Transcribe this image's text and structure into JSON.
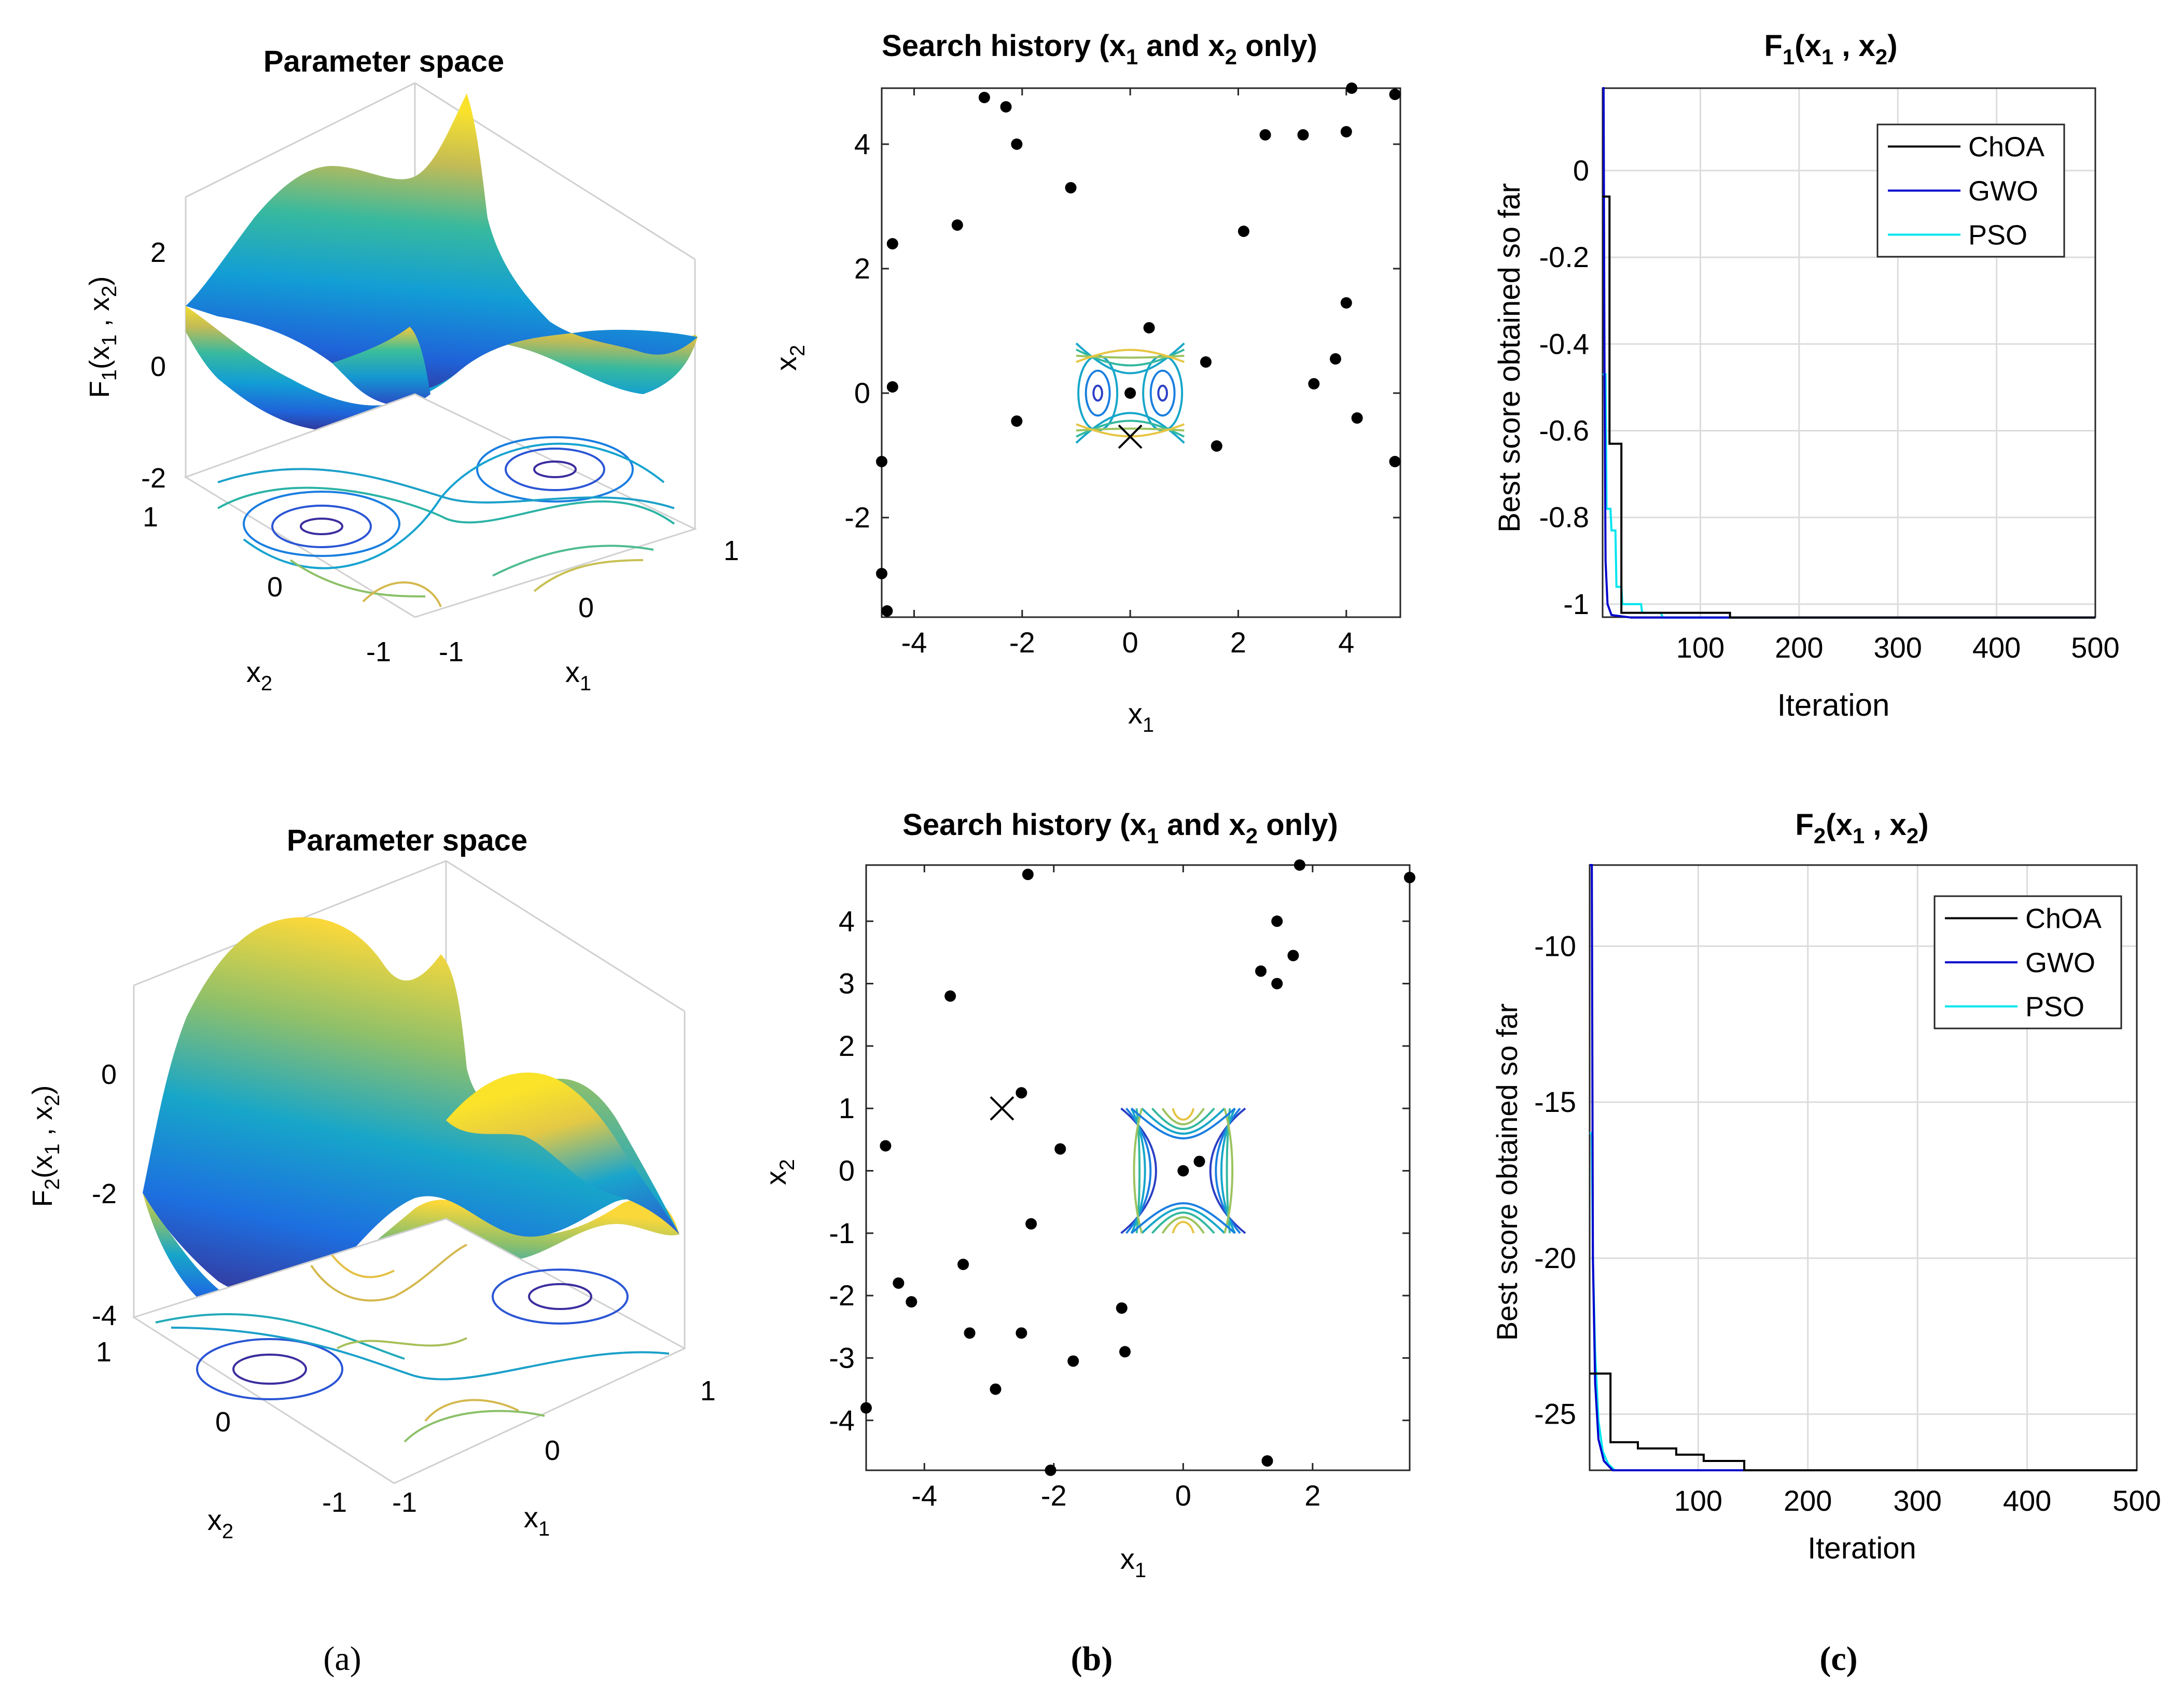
{
  "figure": {
    "panel_labels": [
      "(a)",
      "(b)",
      "(c)"
    ]
  },
  "row1": {
    "surface": {
      "title": "Parameter space",
      "zlabel": {
        "base": "F",
        "sub": "1",
        "rest": "(x",
        "sub2": "1",
        "mid": " , x",
        "sub3": "2",
        "end": ")"
      },
      "xlabel": {
        "base": "x",
        "sub": "1"
      },
      "ylabel": {
        "base": "x",
        "sub": "2"
      },
      "zticks": [
        "2",
        "0",
        "-2"
      ],
      "xticks": [
        "-1",
        "0",
        "1"
      ],
      "yticks": [
        "1",
        "0",
        "-1"
      ]
    },
    "history": {
      "title_pre": "Search history (x",
      "title_sub1": "1",
      "title_mid": " and x",
      "title_sub2": "2",
      "title_post": " only)",
      "xlabel": {
        "base": "x",
        "sub": "1"
      },
      "ylabel": {
        "base": "x",
        "sub": "2"
      }
    },
    "convergence": {
      "title": {
        "base": "F",
        "sub": "1",
        "rest": "(x",
        "sub2": "1",
        "mid": " , x",
        "sub3": "2",
        "end": ")"
      },
      "xlabel": "Iteration",
      "ylabel": "Best score obtained so far"
    }
  },
  "row2": {
    "surface": {
      "title": "Parameter space",
      "zlabel": {
        "base": "F",
        "sub": "2",
        "rest": "(x",
        "sub2": "1",
        "mid": " , x",
        "sub3": "2",
        "end": ")"
      },
      "xlabel": {
        "base": "x",
        "sub": "1"
      },
      "ylabel": {
        "base": "x",
        "sub": "2"
      },
      "zticks": [
        "0",
        "-2",
        "-4"
      ],
      "xticks": [
        "-1",
        "0",
        "1"
      ],
      "yticks": [
        "1",
        "0",
        "-1"
      ]
    },
    "history": {
      "title_pre": "Search history (x",
      "title_sub1": "1",
      "title_mid": " and x",
      "title_sub2": "2",
      "title_post": " only)",
      "xlabel": {
        "base": "x",
        "sub": "1"
      },
      "ylabel": {
        "base": "x",
        "sub": "2"
      }
    },
    "convergence": {
      "title": {
        "base": "F",
        "sub": "2",
        "rest": "(x",
        "sub2": "1",
        "mid": " , x",
        "sub3": "2",
        "end": ")"
      },
      "xlabel": "Iteration",
      "ylabel": "Best score obtained so far"
    }
  },
  "colors": {
    "ChOA": "#000000",
    "GWO": "#0000cc",
    "PSO": "#00e5ee",
    "grid": "#dcdcdc"
  },
  "chart_data": [
    {
      "type": "scatter",
      "id": "history1",
      "xlim": [
        -4.6,
        5
      ],
      "ylim": [
        -3.6,
        4.9
      ],
      "xticks": [
        -4,
        -2,
        0,
        2,
        4
      ],
      "yticks": [
        -2,
        0,
        2,
        4
      ],
      "points": [
        [
          -2.7,
          4.75
        ],
        [
          -2.3,
          4.6
        ],
        [
          -2.1,
          4.0
        ],
        [
          -1.1,
          3.3
        ],
        [
          -3.2,
          2.7
        ],
        [
          -4.4,
          2.4
        ],
        [
          -4.4,
          0.1
        ],
        [
          -4.6,
          -1.1
        ],
        [
          -4.6,
          -2.9
        ],
        [
          -4.5,
          -3.5
        ],
        [
          -2.1,
          -0.45
        ],
        [
          0.35,
          1.05
        ],
        [
          0.0,
          0.0
        ],
        [
          1.4,
          0.5
        ],
        [
          1.6,
          -0.85
        ],
        [
          2.1,
          2.6
        ],
        [
          2.5,
          4.15
        ],
        [
          3.2,
          4.15
        ],
        [
          4.1,
          4.9
        ],
        [
          4.9,
          4.8
        ],
        [
          4.0,
          4.2
        ],
        [
          4.0,
          1.45
        ],
        [
          3.8,
          0.55
        ],
        [
          3.4,
          0.15
        ],
        [
          4.2,
          -0.4
        ],
        [
          4.9,
          -1.1
        ]
      ],
      "best": [
        0,
        -0.7
      ],
      "inset": {
        "x": [
          -1,
          1
        ],
        "y": [
          -1,
          1
        ]
      }
    },
    {
      "type": "scatter",
      "id": "history2",
      "xlim": [
        -4.9,
        3.5
      ],
      "ylim": [
        -4.8,
        4.9
      ],
      "xticks": [
        -4,
        -2,
        0,
        2
      ],
      "yticks": [
        -4,
        -3,
        -2,
        -1,
        0,
        1,
        2,
        3,
        4
      ],
      "points": [
        [
          -2.4,
          4.75
        ],
        [
          -3.6,
          2.8
        ],
        [
          -2.5,
          1.25
        ],
        [
          -1.9,
          0.35
        ],
        [
          -4.6,
          0.4
        ],
        [
          -2.35,
          -0.85
        ],
        [
          -3.4,
          -1.5
        ],
        [
          -4.4,
          -1.8
        ],
        [
          -4.2,
          -2.1
        ],
        [
          -3.3,
          -2.6
        ],
        [
          -2.5,
          -2.6
        ],
        [
          -2.9,
          -3.5
        ],
        [
          -0.95,
          -2.2
        ],
        [
          -0.9,
          -2.9
        ],
        [
          -1.7,
          -3.05
        ],
        [
          -2.05,
          -4.8
        ],
        [
          -4.9,
          -3.8
        ],
        [
          0.25,
          0.15
        ],
        [
          0.0,
          0.0
        ],
        [
          1.3,
          -4.65
        ],
        [
          1.2,
          3.2
        ],
        [
          1.45,
          4.0
        ],
        [
          1.7,
          3.45
        ],
        [
          1.45,
          3.0
        ],
        [
          1.8,
          4.9
        ],
        [
          3.5,
          4.7
        ]
      ],
      "best": [
        -2.8,
        1.0
      ],
      "inset": {
        "x": [
          -1,
          1
        ],
        "y": [
          -1,
          1
        ]
      }
    },
    {
      "type": "line",
      "id": "convergence1",
      "xlim": [
        1,
        500
      ],
      "ylim": [
        -1.03,
        0.19
      ],
      "xticks": [
        100,
        200,
        300,
        400,
        500
      ],
      "yticks": [
        0,
        -0.2,
        -0.4,
        -0.6,
        -0.8,
        -1
      ],
      "legend": "top-right",
      "series": [
        {
          "name": "ChOA",
          "points": [
            [
              1,
              -0.06
            ],
            [
              8,
              -0.06
            ],
            [
              8,
              -0.63
            ],
            [
              20,
              -0.63
            ],
            [
              20,
              -1.02
            ],
            [
              130,
              -1.02
            ],
            [
              130,
              -1.031
            ],
            [
              500,
              -1.031
            ]
          ]
        },
        {
          "name": "GWO",
          "points": [
            [
              1,
              0.19
            ],
            [
              2,
              0.19
            ],
            [
              3,
              -0.5
            ],
            [
              4,
              -0.9
            ],
            [
              6,
              -1.0
            ],
            [
              10,
              -1.025
            ],
            [
              30,
              -1.031
            ],
            [
              500,
              -1.031
            ]
          ]
        },
        {
          "name": "PSO",
          "points": [
            [
              1,
              -0.47
            ],
            [
              4,
              -0.47
            ],
            [
              5,
              -0.78
            ],
            [
              9,
              -0.78
            ],
            [
              10,
              -0.83
            ],
            [
              14,
              -0.83
            ],
            [
              15,
              -0.96
            ],
            [
              20,
              -0.96
            ],
            [
              21,
              -1.0
            ],
            [
              40,
              -1.0
            ],
            [
              41,
              -1.02
            ],
            [
              60,
              -1.02
            ],
            [
              62,
              -1.031
            ],
            [
              500,
              -1.031
            ]
          ]
        }
      ]
    },
    {
      "type": "line",
      "id": "convergence2",
      "xlim": [
        1,
        500
      ],
      "ylim": [
        -26.8,
        -7.4
      ],
      "xticks": [
        100,
        200,
        300,
        400,
        500
      ],
      "yticks": [
        -10,
        -15,
        -20,
        -25
      ],
      "legend": "top-right",
      "series": [
        {
          "name": "ChOA",
          "points": [
            [
              1,
              -23.7
            ],
            [
              20,
              -23.7
            ],
            [
              20,
              -25.9
            ],
            [
              45,
              -25.9
            ],
            [
              45,
              -26.1
            ],
            [
              80,
              -26.1
            ],
            [
              80,
              -26.3
            ],
            [
              105,
              -26.3
            ],
            [
              105,
              -26.5
            ],
            [
              142,
              -26.5
            ],
            [
              142,
              -26.8
            ],
            [
              500,
              -26.8
            ]
          ]
        },
        {
          "name": "GWO",
          "points": [
            [
              1,
              -7.4
            ],
            [
              3,
              -7.4
            ],
            [
              4,
              -20
            ],
            [
              6,
              -24
            ],
            [
              9,
              -25.8
            ],
            [
              14,
              -26.5
            ],
            [
              22,
              -26.8
            ],
            [
              500,
              -26.8
            ]
          ]
        },
        {
          "name": "PSO",
          "points": [
            [
              1,
              -16
            ],
            [
              3,
              -16
            ],
            [
              4,
              -20
            ],
            [
              6,
              -23
            ],
            [
              9,
              -25.2
            ],
            [
              13,
              -26.2
            ],
            [
              18,
              -26.6
            ],
            [
              24,
              -26.8
            ],
            [
              500,
              -26.8
            ]
          ]
        }
      ]
    }
  ]
}
